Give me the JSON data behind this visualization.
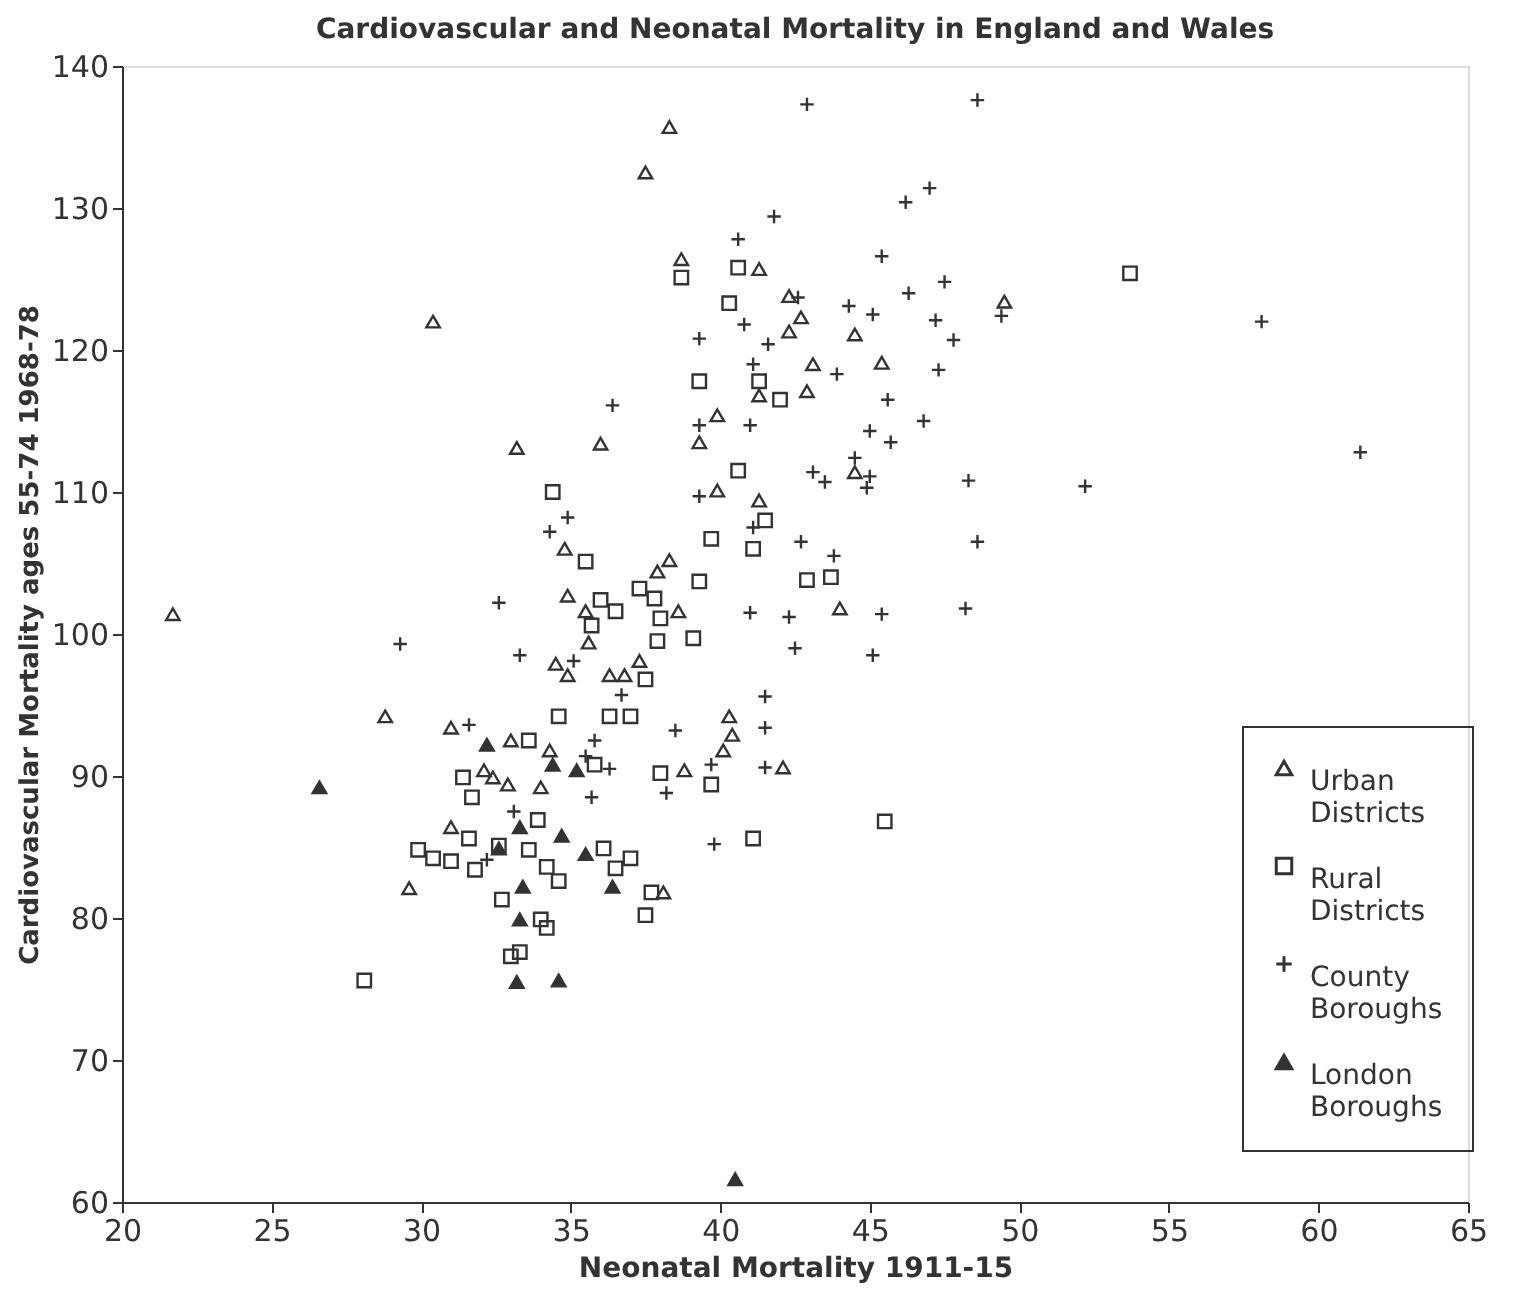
{
  "chart_data": {
    "type": "scatter",
    "title": "Cardiovascular and Neonatal Mortality in England and Wales",
    "xlabel": "Neonatal Mortality 1911-15",
    "ylabel": "Cardiovascular Mortality ages 55-74 1968-78",
    "xlim": [
      20,
      65
    ],
    "xticks": [
      20,
      25,
      30,
      35,
      40,
      45,
      50,
      55,
      60,
      65
    ],
    "ylim": [
      60,
      140
    ],
    "yticks": [
      60,
      70,
      80,
      90,
      100,
      110,
      120,
      130,
      140
    ],
    "grid": false,
    "legend": "right",
    "series": [
      {
        "name": "Urban Districts",
        "color": "#333333",
        "marker": "triangle",
        "x": [
          38.3,
          37.5,
          30.4,
          38.7,
          41.3,
          33.2,
          36.0,
          39.9,
          39.3,
          39.9,
          41.3,
          34.8,
          34.9,
          38.3,
          37.9,
          38.6,
          41.3,
          21.7,
          42.3,
          42.7,
          42.3,
          44.5,
          43.1,
          45.4,
          42.9,
          49.5,
          44.5,
          44.0,
          28.8,
          29.6,
          31.0,
          31.0,
          32.1,
          32.4,
          32.9,
          33.0,
          34.0,
          34.3,
          34.5,
          34.9,
          35.6,
          35.5,
          36.3,
          36.8,
          37.3,
          38.1,
          38.8,
          40.1,
          40.3,
          40.4,
          42.1
        ],
        "values": [
          135.7,
          132.5,
          122,
          126.4,
          125.7,
          113.1,
          113.4,
          115.4,
          113.5,
          110.1,
          109.4,
          106,
          102.7,
          105.2,
          104.4,
          101.6,
          116.8,
          101.4,
          123.8,
          122.3,
          121.3,
          121.1,
          119,
          119.1,
          117.1,
          123.4,
          111.4,
          101.8,
          94.2,
          82.1,
          93.4,
          86.4,
          90.4,
          89.9,
          89.4,
          92.5,
          89.2,
          91.8,
          97.9,
          97.1,
          99.4,
          101.6,
          97.1,
          97.1,
          98.1,
          81.8,
          90.4,
          91.8,
          94.2,
          92.9,
          90.6
        ]
      },
      {
        "name": "Rural Districts",
        "color": "#333333",
        "marker": "square",
        "x": [
          28.1,
          29.9,
          30.4,
          31.0,
          31.4,
          31.7,
          31.8,
          31.6,
          32.6,
          32.7,
          33.0,
          33.3,
          33.6,
          33.9,
          33.6,
          34.2,
          34.6,
          34.0,
          34.2,
          34.6,
          35.8,
          36.1,
          36.5,
          37.0,
          36.3,
          37.0,
          37.5,
          37.7,
          37.5,
          37.9,
          39.1,
          38.0,
          39.7,
          41.1,
          35.7,
          36.5,
          38.0,
          34.4,
          35.5,
          38.7,
          40.6,
          40.3,
          39.3,
          41.3,
          40.6,
          41.5,
          39.7,
          41.1,
          39.3,
          36.0,
          37.3,
          37.8,
          53.7,
          42.0,
          42.9,
          43.7,
          45.5
        ],
        "values": [
          75.6,
          84.8,
          84.2,
          84.0,
          89.9,
          88.5,
          83.4,
          85.6,
          85.1,
          81.3,
          77.3,
          77.6,
          92.5,
          86.9,
          84.8,
          83.6,
          82.6,
          79.9,
          79.3,
          94.2,
          90.8,
          84.9,
          83.5,
          84.2,
          94.2,
          94.2,
          96.8,
          81.8,
          80.2,
          99.5,
          99.7,
          90.2,
          89.4,
          85.6,
          100.6,
          101.6,
          101.1,
          110,
          105.1,
          125.1,
          125.8,
          123.3,
          117.8,
          117.8,
          111.5,
          108,
          106.7,
          106,
          103.7,
          102.4,
          103.2,
          102.5,
          125.4,
          116.5,
          103.8,
          104,
          86.8
        ]
      },
      {
        "name": "County Boroughs",
        "color": "#333333",
        "marker": "cross",
        "x": [
          29.3,
          32.6,
          34.3,
          34.9,
          36.4,
          39.3,
          40.6,
          40.8,
          39.3,
          41.0,
          39.3,
          41.1,
          41.0,
          41.8,
          41.1,
          42.9,
          48.6,
          46.2,
          47.0,
          45.4,
          46.3,
          47.5,
          42.6,
          44.3,
          45.1,
          47.2,
          47.8,
          49.4,
          41.6,
          43.9,
          47.3,
          45.6,
          45.0,
          45.7,
          46.8,
          44.5,
          45.0,
          44.9,
          43.1,
          43.5,
          48.3,
          52.2,
          58.1,
          61.4,
          42.7,
          43.8,
          48.6,
          42.3,
          45.4,
          48.2,
          42.5,
          45.1,
          41.5,
          41.5,
          41.5,
          33.3,
          35.1,
          31.6,
          35.8,
          35.5,
          36.7,
          36.3,
          35.7,
          33.1,
          32.2,
          38.5,
          38.2,
          39.7,
          39.8
        ],
        "values": [
          99.3,
          102.2,
          107.2,
          108.2,
          116.1,
          120.8,
          127.8,
          121.8,
          114.7,
          114.7,
          109.7,
          107.5,
          101.5,
          129.4,
          119,
          137.3,
          137.6,
          130.4,
          131.4,
          126.6,
          124,
          124.8,
          123.7,
          123.1,
          122.5,
          122.1,
          120.7,
          122.4,
          120.4,
          118.3,
          118.6,
          116.5,
          114.3,
          113.5,
          115,
          112.4,
          111.1,
          110.3,
          111.4,
          110.7,
          110.8,
          110.4,
          122,
          112.8,
          106.5,
          105.5,
          106.5,
          101.2,
          101.4,
          101.8,
          99,
          98.5,
          95.6,
          93.4,
          90.6,
          98.5,
          98.1,
          93.6,
          92.5,
          91.4,
          95.7,
          90.5,
          88.5,
          87.5,
          84.1,
          93.2,
          88.8,
          90.8,
          85.2
        ]
      },
      {
        "name": "London Boroughs",
        "color": "#333333",
        "marker": "triangle",
        "x": [
          26.6,
          32.2,
          33.3,
          33.4,
          33.3,
          33.2,
          34.6,
          34.4,
          34.7,
          35.2,
          35.5,
          36.4,
          32.6,
          40.5
        ],
        "values": [
          89.2,
          92.2,
          86.4,
          82.2,
          79.9,
          75.5,
          75.6,
          90.8,
          85.8,
          90.4,
          84.5,
          82.2,
          84.9,
          61.6
        ]
      }
    ]
  }
}
